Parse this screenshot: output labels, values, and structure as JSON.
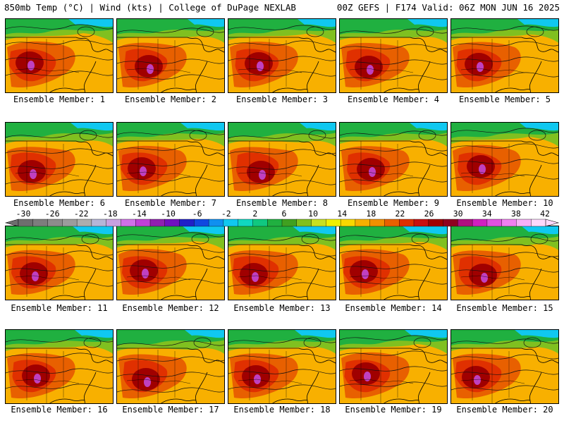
{
  "header": {
    "left": "850mb Temp (°C) | Wind (kts) | College of DuPage NEXLAB",
    "right": "00Z GEFS | F174 Valid: 06Z MON JUN 16 2025"
  },
  "panels": [
    {
      "label": "Ensemble Member: 1"
    },
    {
      "label": "Ensemble Member: 2"
    },
    {
      "label": "Ensemble Member: 3"
    },
    {
      "label": "Ensemble Member: 4"
    },
    {
      "label": "Ensemble Member: 5"
    },
    {
      "label": "Ensemble Member: 6"
    },
    {
      "label": "Ensemble Member: 7"
    },
    {
      "label": "Ensemble Member: 8"
    },
    {
      "label": "Ensemble Member: 9"
    },
    {
      "label": "Ensemble Member: 10"
    },
    {
      "label": "Ensemble Member: 11"
    },
    {
      "label": "Ensemble Member: 12"
    },
    {
      "label": "Ensemble Member: 13"
    },
    {
      "label": "Ensemble Member: 14"
    },
    {
      "label": "Ensemble Member: 15"
    },
    {
      "label": "Ensemble Member: 16"
    },
    {
      "label": "Ensemble Member: 17"
    },
    {
      "label": "Ensemble Member: 18"
    },
    {
      "label": "Ensemble Member: 19"
    },
    {
      "label": "Ensemble Member: 20"
    }
  ],
  "colorbar": {
    "labels": [
      "-30",
      "-26",
      "-22",
      "-18",
      "-14",
      "-10",
      "-6",
      "-2",
      "2",
      "6",
      "10",
      "14",
      "18",
      "22",
      "26",
      "30",
      "34",
      "38",
      "42"
    ],
    "colors": [
      "#6e6e6e",
      "#7d7d7d",
      "#8c8c8c",
      "#9c9c9c",
      "#adadad",
      "#b5b5d8",
      "#c8a0e0",
      "#d070e8",
      "#c040d8",
      "#9020b0",
      "#7010c0",
      "#2020c8",
      "#1048e0",
      "#1090f0",
      "#10c8f0",
      "#10d8c0",
      "#10c880",
      "#20b040",
      "#40a020",
      "#80c020",
      "#c8e020",
      "#f0f000",
      "#f8d800",
      "#f8b000",
      "#f09000",
      "#e86000",
      "#e03000",
      "#c81010",
      "#a00000",
      "#900020",
      "#b01080",
      "#d020c0",
      "#e050e0",
      "#f080f0",
      "#f8b0f8",
      "#fcd8fc"
    ]
  },
  "map_colors": {
    "cold": "#10c8f0",
    "cool": "#20b040",
    "mild": "#80c020",
    "warm": "#f8b000",
    "hot": "#e86000",
    "very_hot": "#e03000",
    "extreme": "#a00000",
    "peak": "#c040c0"
  }
}
